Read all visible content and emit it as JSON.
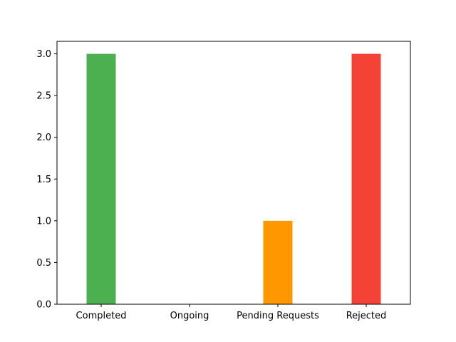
{
  "chart_data": {
    "type": "bar",
    "categories": [
      "Completed",
      "Ongoing",
      "Pending Requests",
      "Rejected"
    ],
    "values": [
      3,
      0,
      1,
      3
    ],
    "colors": [
      "#4caf50",
      "#2196f3",
      "#ff9800",
      "#f44336"
    ],
    "yticks": [
      "0.0",
      "0.5",
      "1.0",
      "1.5",
      "2.0",
      "2.5",
      "3.0"
    ],
    "ylim": [
      0,
      3.15
    ],
    "title": "",
    "xlabel": "",
    "ylabel": "",
    "grid": false,
    "legend": "none"
  }
}
